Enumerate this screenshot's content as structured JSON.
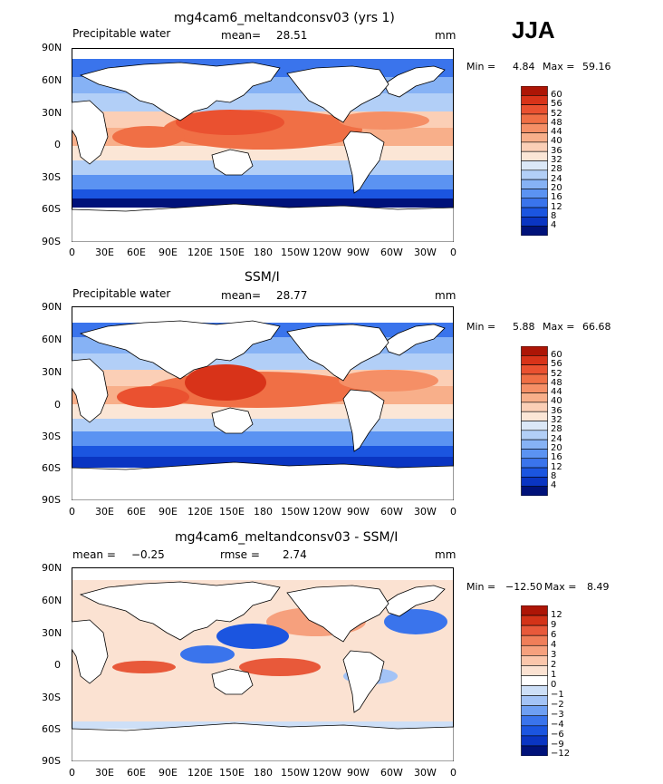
{
  "season": "JJA",
  "colors": {
    "pw": [
      "#00127a",
      "#0a35c2",
      "#1b55e0",
      "#3a74ec",
      "#5b93f2",
      "#86b2f5",
      "#b2cff7",
      "#dbe8f7",
      "#fbe6d6",
      "#fbcfb6",
      "#f8af8a",
      "#f58f66",
      "#f06f45",
      "#ea5130",
      "#d83319",
      "#ad1506"
    ],
    "diff": [
      "#00127a",
      "#0a35c2",
      "#1b55e0",
      "#3a74ec",
      "#6e9ff3",
      "#a3c3f6",
      "#cddff7",
      "#ffffff",
      "#fbe2d2",
      "#fbc6ab",
      "#f6a07d",
      "#f07e59",
      "#e8593a",
      "#d33318",
      "#ad1506"
    ]
  },
  "panels": [
    {
      "title": "mg4cam6_meltandconsv03 (yrs 1)",
      "left_label": "Precipitable water",
      "stat_label": "mean=",
      "stat_value": "28.51",
      "stat2_label": "",
      "stat2_value": "",
      "units": "mm",
      "min_label": "Min =",
      "min_value": "4.84",
      "max_label": "Max =",
      "max_value": "59.16",
      "colorbar_labels": [
        "60",
        "56",
        "52",
        "48",
        "44",
        "40",
        "36",
        "32",
        "28",
        "24",
        "20",
        "16",
        "12",
        "8",
        "4"
      ]
    },
    {
      "title": "SSM/I",
      "left_label": "Precipitable water",
      "stat_label": "mean=",
      "stat_value": "28.77",
      "stat2_label": "",
      "stat2_value": "",
      "units": "mm",
      "min_label": "Min =",
      "min_value": "5.88",
      "max_label": "Max =",
      "max_value": "66.68",
      "colorbar_labels": [
        "60",
        "56",
        "52",
        "48",
        "44",
        "40",
        "36",
        "32",
        "28",
        "24",
        "20",
        "16",
        "12",
        "8",
        "4"
      ]
    },
    {
      "title": "mg4cam6_meltandconsv03 - SSM/I",
      "left_label": "mean =",
      "stat_label": "",
      "stat_value": "−0.25",
      "stat2_label": "rmse =",
      "stat2_value": "2.74",
      "units": "mm",
      "min_label": "Min =",
      "min_value": "−12.50",
      "max_label": "Max =",
      "max_value": "8.49",
      "colorbar_labels": [
        "12",
        "9",
        "6",
        "4",
        "3",
        "2",
        "1",
        "0",
        "−1",
        "−2",
        "−3",
        "−4",
        "−6",
        "−9",
        "−12"
      ]
    }
  ],
  "lat_labels": [
    "90N",
    "60N",
    "30N",
    "0",
    "30S",
    "60S",
    "90S"
  ],
  "lon_labels": [
    "0",
    "30E",
    "60E",
    "90E",
    "120E",
    "150E",
    "180",
    "150W",
    "120W",
    "90W",
    "60W",
    "30W",
    "0"
  ]
}
